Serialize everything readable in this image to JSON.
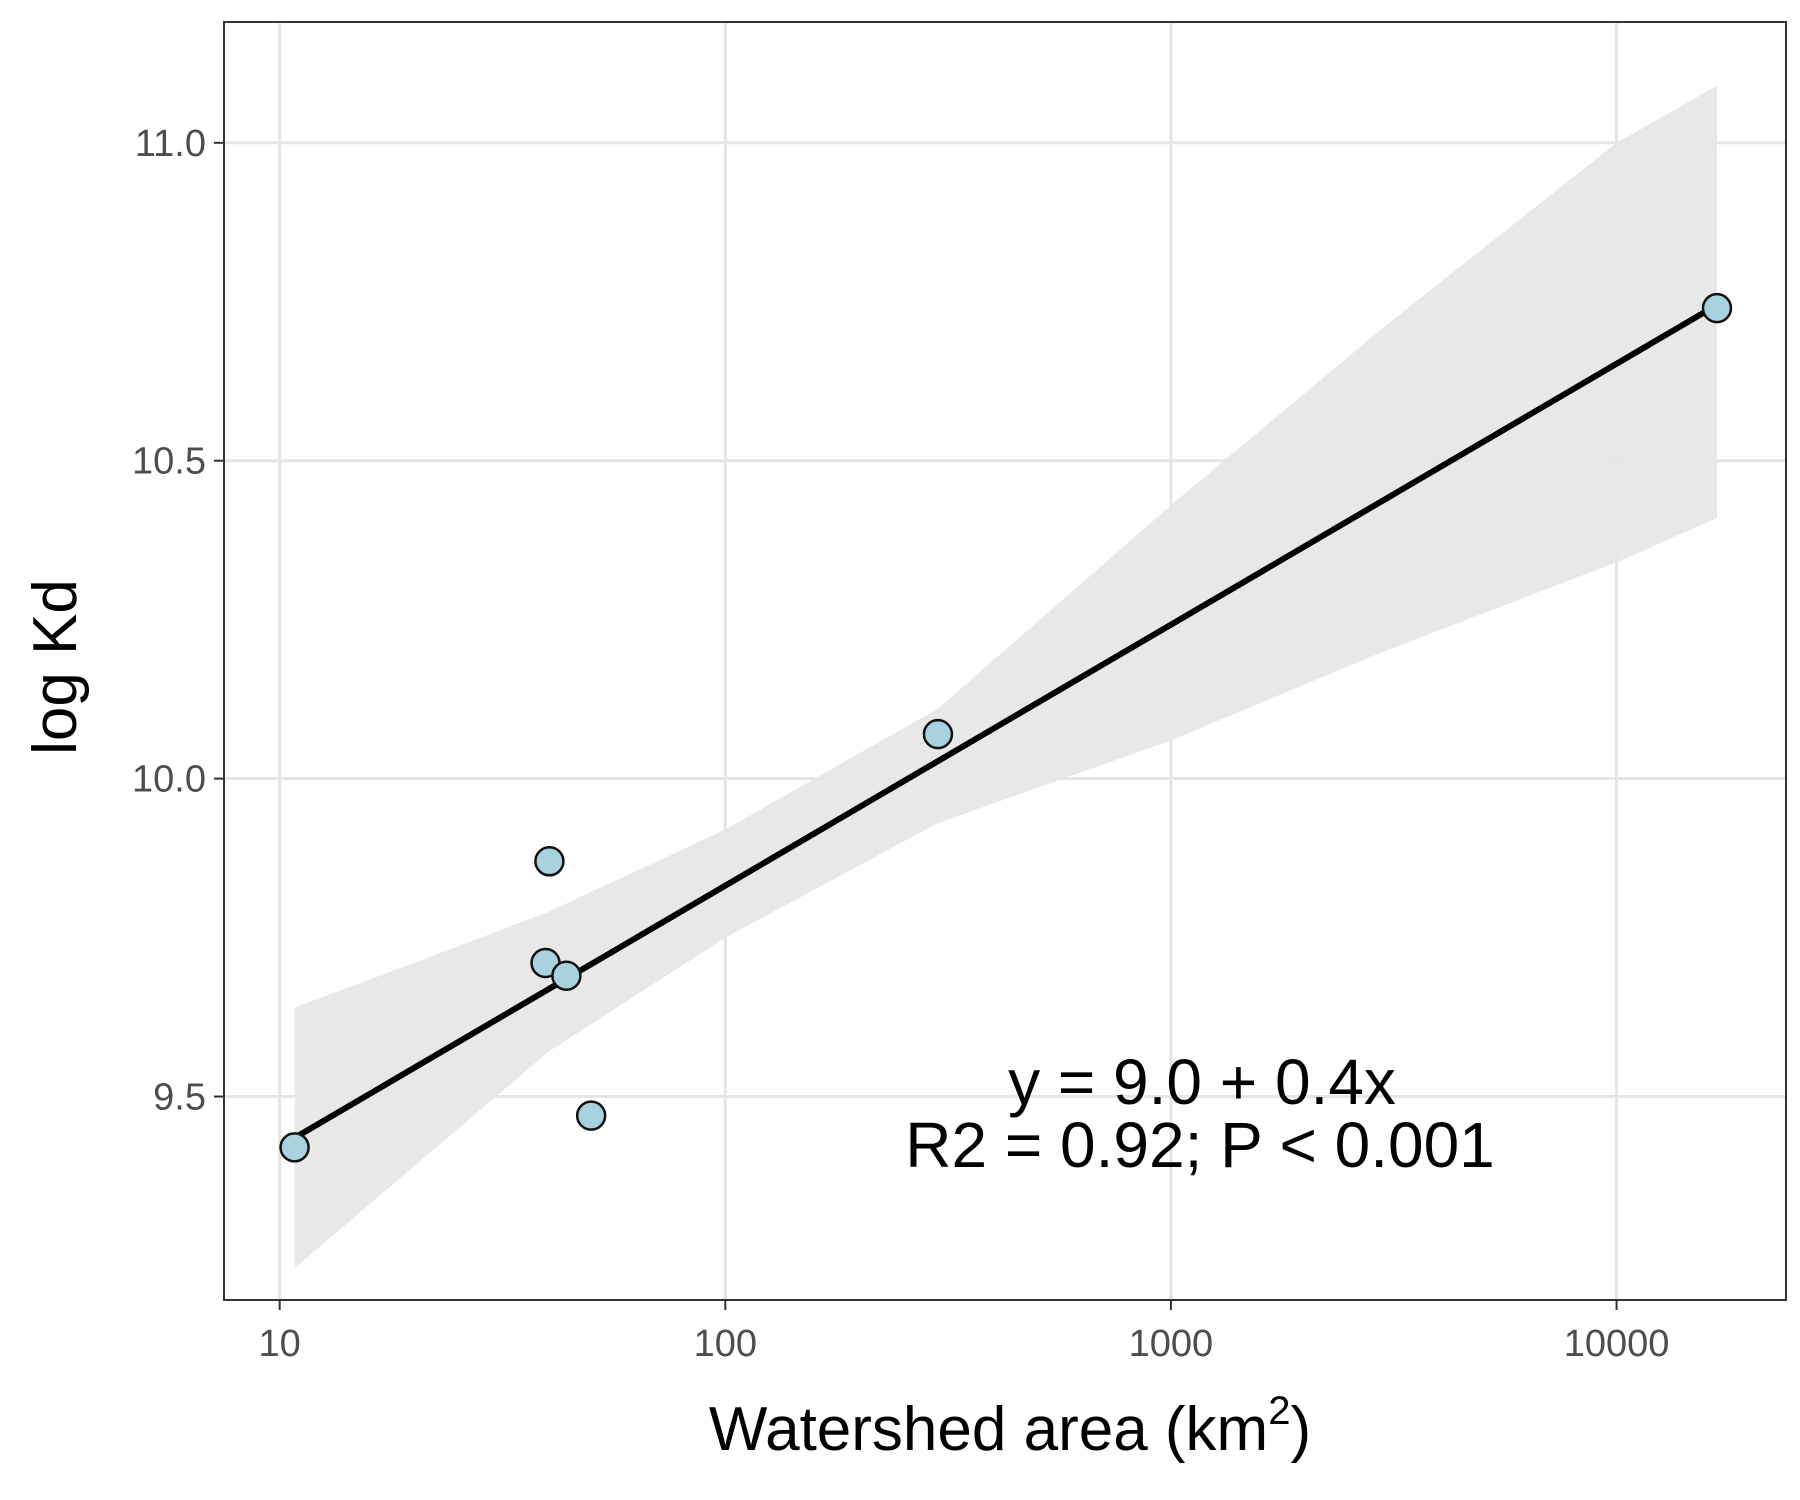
{
  "chart_data": {
    "type": "scatter",
    "xlabel": "Watershed area (km",
    "xlabel_superscript": "2",
    "xlabel_suffix": ")",
    "ylabel": "log Kd",
    "x_scale": "log10",
    "xlim": [
      7.5,
      24000
    ],
    "ylim": [
      9.18,
      11.19
    ],
    "x_ticks": [
      10,
      100,
      1000,
      10000
    ],
    "x_tick_labels": [
      "10",
      "100",
      "1000",
      "10000"
    ],
    "y_ticks": [
      9.5,
      10.0,
      10.5,
      11.0
    ],
    "y_tick_labels": [
      "9.5",
      "10.0",
      "10.5",
      "11.0"
    ],
    "grid": true,
    "points": [
      {
        "x": 10.8,
        "y": 9.42
      },
      {
        "x": 39.5,
        "y": 9.71
      },
      {
        "x": 40.3,
        "y": 9.87
      },
      {
        "x": 44.0,
        "y": 9.69
      },
      {
        "x": 50.0,
        "y": 9.47
      },
      {
        "x": 300,
        "y": 10.07
      },
      {
        "x": 16800,
        "y": 10.74
      }
    ],
    "fit_line": {
      "x": [
        10.8,
        16800
      ],
      "y": [
        9.435,
        10.745
      ]
    },
    "confidence_band": {
      "x": [
        10.8,
        20,
        40,
        100,
        300,
        1000,
        3000,
        10000,
        16800
      ],
      "lower": [
        9.23,
        9.39,
        9.57,
        9.75,
        9.93,
        10.06,
        10.2,
        10.34,
        10.41
      ],
      "upper": [
        9.64,
        9.71,
        9.79,
        9.92,
        10.11,
        10.43,
        10.71,
        11.0,
        11.09
      ]
    },
    "annotations": [
      "y = 9.0 + 0.4x",
      "R2 = 0.92; P < 0.001"
    ],
    "colors": {
      "point_fill": "#a8d2e0",
      "point_stroke": "#111111",
      "line": "#000000",
      "band": "#e6e6e6",
      "grid": "#e5e5e5",
      "panel_border": "#333333"
    }
  }
}
